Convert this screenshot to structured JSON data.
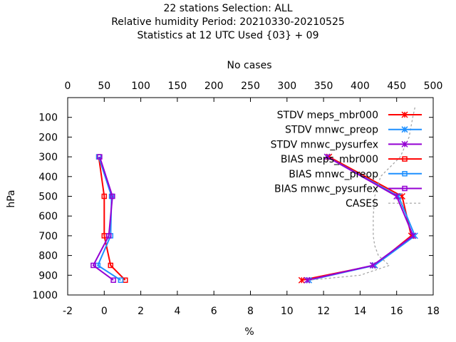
{
  "chart_data": {
    "type": "line",
    "title_lines": [
      "22 stations Selection: ALL",
      "Relative humidity  Period: 20210330-20210525",
      "Statistics at 12 UTC  Used {03} + 09"
    ],
    "xlabel": "%",
    "ylabel": "hPa",
    "x2label": "No cases",
    "xlim": [
      -2,
      18
    ],
    "x2lim": [
      0,
      500
    ],
    "ylim": [
      1000,
      0
    ],
    "xticks": [
      "-2",
      "0",
      "2",
      "4",
      "6",
      "8",
      "10",
      "12",
      "14",
      "16",
      "18"
    ],
    "x2ticks": [
      "0",
      "50",
      "100",
      "150",
      "200",
      "250",
      "300",
      "350",
      "400",
      "450",
      "500"
    ],
    "yticks": [
      "100",
      "200",
      "300",
      "400",
      "500",
      "600",
      "700",
      "800",
      "900",
      "1000"
    ],
    "legend_position": "top-right",
    "levels": [
      300,
      500,
      700,
      850,
      925
    ],
    "series": [
      {
        "name": "STDV meps_mbr000",
        "color": "#ff0000",
        "marker": "x",
        "values": [
          12.3,
          16.3,
          16.8,
          14.8,
          10.8
        ]
      },
      {
        "name": "STDV mnwc_preop",
        "color": "#1e90ff",
        "marker": "x",
        "values": [
          12.2,
          16.1,
          17.0,
          14.8,
          11.2
        ]
      },
      {
        "name": "STDV mnwc_pysurfex",
        "color": "#9400d3",
        "marker": "x",
        "values": [
          12.2,
          16.0,
          16.9,
          14.7,
          11.1
        ]
      },
      {
        "name": "BIAS meps_mbr000",
        "color": "#ff0000",
        "marker": "square",
        "values": [
          -0.3,
          0.0,
          0.0,
          0.35,
          1.15
        ]
      },
      {
        "name": "BIAS mnwc_preop",
        "color": "#1e90ff",
        "marker": "square",
        "values": [
          -0.3,
          0.4,
          0.35,
          -0.35,
          0.9
        ]
      },
      {
        "name": "BIAS mnwc_pysurfex",
        "color": "#9400d3",
        "marker": "square",
        "values": [
          -0.25,
          0.45,
          0.25,
          -0.6,
          0.5
        ]
      },
      {
        "name": "CASES",
        "color": "#a0a0a0",
        "marker": "none",
        "dashed": true,
        "axis": "x2",
        "levels": [
          50,
          100,
          200,
          300,
          400,
          500,
          600,
          700,
          750,
          800,
          850,
          900,
          925
        ],
        "values": [
          475,
          472,
          467,
          455,
          428,
          420,
          418,
          418,
          420,
          425,
          440,
          400,
          330
        ]
      }
    ]
  }
}
